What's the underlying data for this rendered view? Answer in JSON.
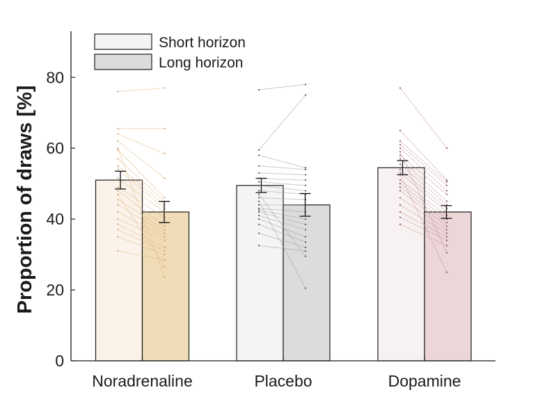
{
  "chart_data": {
    "type": "bar",
    "ylabel": "Proportion of draws [%]",
    "ylim": [
      0,
      93
    ],
    "yticks": [
      0,
      20,
      40,
      60,
      80
    ],
    "grid": false,
    "legend_position": "top-left",
    "categories": [
      "Noradrenaline",
      "Placebo",
      "Dopamine"
    ],
    "series": [
      {
        "name": "Short horizon",
        "values": [
          51.0,
          49.5,
          54.5
        ],
        "errors": [
          2.5,
          2.0,
          2.0
        ]
      },
      {
        "name": "Long horizon",
        "values": [
          42.0,
          44.0,
          42.0
        ],
        "errors": [
          3.0,
          3.2,
          1.8
        ]
      }
    ],
    "colors": {
      "Noradrenaline": {
        "short": "#fbf3ea",
        "long": "#f0dcb7",
        "line": "#e4b98a",
        "dot": "#c9a27c"
      },
      "Placebo": {
        "short": "#f4f4f4",
        "long": "#dcdcdc",
        "line": "#a0a0a0",
        "dot": "#555555"
      },
      "Dopamine": {
        "short": "#f8f1f2",
        "long": "#ecd6d8",
        "line": "#c99aa3",
        "dot": "#8a5566"
      },
      "legend_short": "#f4f4f4",
      "legend_long": "#dcdcdc"
    },
    "individual_pairs": [
      [
        [
          76,
          77
        ],
        [
          65.5,
          65.5
        ],
        [
          64,
          58.5
        ],
        [
          62,
          51.5
        ],
        [
          59.5,
          46
        ],
        [
          57,
          45
        ],
        [
          55,
          44
        ],
        [
          54,
          43
        ],
        [
          51.5,
          42
        ],
        [
          49,
          40.5
        ],
        [
          48,
          38
        ],
        [
          45.5,
          37
        ],
        [
          44,
          36
        ],
        [
          42,
          35
        ],
        [
          40,
          34
        ],
        [
          38.5,
          32
        ],
        [
          37,
          31
        ],
        [
          35,
          30
        ],
        [
          31,
          28.5
        ],
        [
          47,
          26.5
        ],
        [
          60,
          23.5
        ]
      ],
      [
        [
          76.5,
          78
        ],
        [
          59.5,
          75
        ],
        [
          58,
          54.5
        ],
        [
          55,
          54
        ],
        [
          53,
          52.5
        ],
        [
          51.5,
          51
        ],
        [
          50.5,
          49.5
        ],
        [
          49.5,
          48
        ],
        [
          48,
          47
        ],
        [
          46,
          45.5
        ],
        [
          44,
          44
        ],
        [
          43,
          42
        ],
        [
          42.5,
          40
        ],
        [
          42,
          38.5
        ],
        [
          41,
          37
        ],
        [
          40,
          35
        ],
        [
          38.5,
          33.5
        ],
        [
          36,
          32
        ],
        [
          32.5,
          31
        ],
        [
          47,
          29.5
        ],
        [
          45,
          20.5
        ]
      ],
      [
        [
          77,
          60
        ],
        [
          65,
          51
        ],
        [
          62,
          50.5
        ],
        [
          61,
          49.5
        ],
        [
          60,
          48
        ],
        [
          58,
          47
        ],
        [
          57,
          45
        ],
        [
          55.5,
          44
        ],
        [
          54,
          43
        ],
        [
          53,
          42
        ],
        [
          51,
          41
        ],
        [
          50,
          40
        ],
        [
          49,
          39
        ],
        [
          48,
          38
        ],
        [
          46,
          37
        ],
        [
          44,
          36
        ],
        [
          42,
          35
        ],
        [
          40.5,
          34
        ],
        [
          38.5,
          32.5
        ],
        [
          59,
          30.5
        ],
        [
          52.5,
          25
        ]
      ]
    ]
  }
}
